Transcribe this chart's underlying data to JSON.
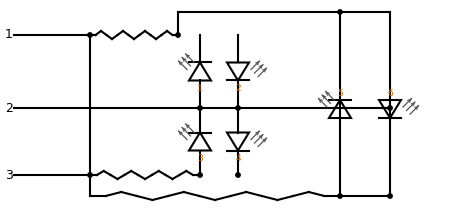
{
  "bg_color": "#ffffff",
  "line_color": "#000000",
  "label_color": "#cc6600",
  "lw": 1.5,
  "figsize": [
    4.65,
    2.18
  ],
  "dpi": 100
}
